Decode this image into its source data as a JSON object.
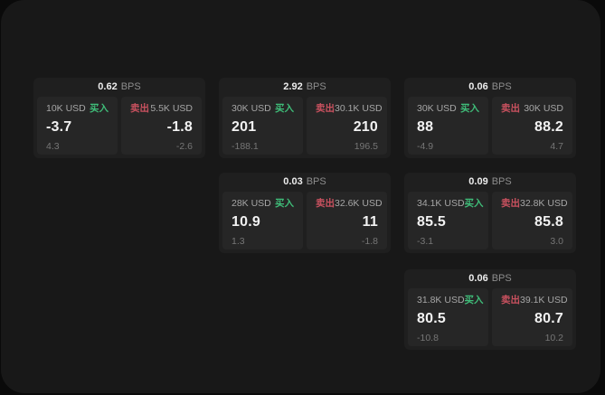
{
  "labels": {
    "buy": "买入",
    "sell": "卖出",
    "bps": "BPS"
  },
  "colors": {
    "green": "#3fbd79",
    "red": "#c9515f",
    "card_bg": "#1f1f1f",
    "panel_bg": "#262626",
    "surface_bg": "#181818"
  },
  "cards": [
    {
      "bps": "0.62",
      "buy": {
        "amount": "10K USD",
        "price": "-3.7",
        "delta": "4.3"
      },
      "sell": {
        "amount": "5.5K USD",
        "price": "-1.8",
        "delta": "-2.6"
      }
    },
    {
      "bps": "2.92",
      "buy": {
        "amount": "30K USD",
        "price": "201",
        "delta": "-188.1"
      },
      "sell": {
        "amount": "30.1K USD",
        "price": "210",
        "delta": "196.5"
      }
    },
    {
      "bps": "0.06",
      "buy": {
        "amount": "30K USD",
        "price": "88",
        "delta": "-4.9"
      },
      "sell": {
        "amount": "30K USD",
        "price": "88.2",
        "delta": "4.7"
      }
    },
    {
      "bps": "0.03",
      "buy": {
        "amount": "28K USD",
        "price": "10.9",
        "delta": "1.3"
      },
      "sell": {
        "amount": "32.6K USD",
        "price": "11",
        "delta": "-1.8"
      }
    },
    {
      "bps": "0.09",
      "buy": {
        "amount": "34.1K USD",
        "price": "85.5",
        "delta": "-3.1"
      },
      "sell": {
        "amount": "32.8K USD",
        "price": "85.8",
        "delta": "3.0"
      }
    },
    {
      "bps": "0.06",
      "buy": {
        "amount": "31.8K USD",
        "price": "80.5",
        "delta": "-10.8"
      },
      "sell": {
        "amount": "39.1K USD",
        "price": "80.7",
        "delta": "10.2"
      }
    }
  ]
}
